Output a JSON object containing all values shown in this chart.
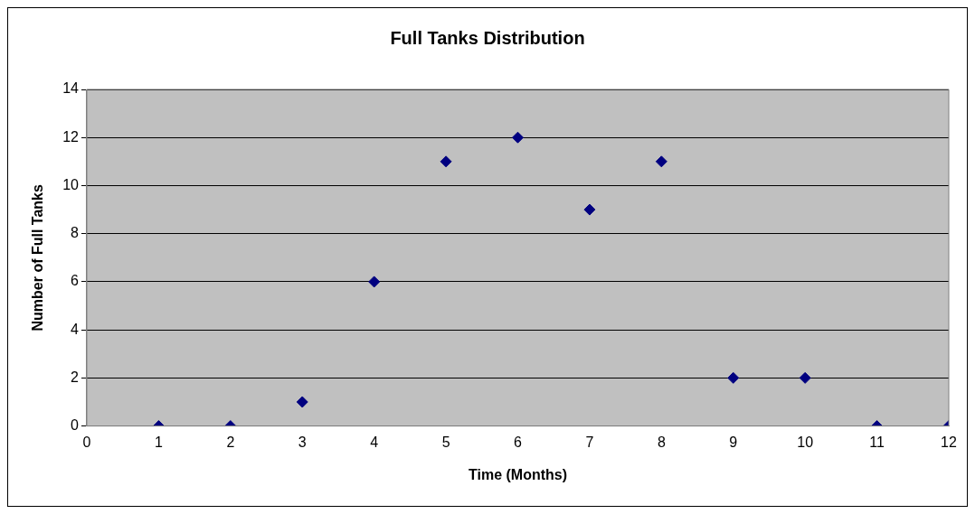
{
  "chart_data": {
    "type": "scatter",
    "title": "Full Tanks Distribution",
    "xlabel": "Time (Months)",
    "ylabel": "Number of Full Tanks",
    "x": [
      1,
      2,
      3,
      4,
      5,
      6,
      7,
      8,
      9,
      10,
      11,
      12
    ],
    "series": [
      {
        "color": "#000080",
        "values": [
          0,
          0,
          1,
          6,
          11,
          12,
          9,
          11,
          2,
          2,
          0,
          0
        ]
      }
    ],
    "xlim": [
      0,
      12
    ],
    "xticks": [
      0,
      1,
      2,
      3,
      4,
      5,
      6,
      7,
      8,
      9,
      10,
      11,
      12
    ],
    "ylim": [
      0,
      14
    ],
    "yticks": [
      0,
      2,
      4,
      6,
      8,
      10,
      12,
      14
    ],
    "grid": "y",
    "marker": "diamond"
  }
}
